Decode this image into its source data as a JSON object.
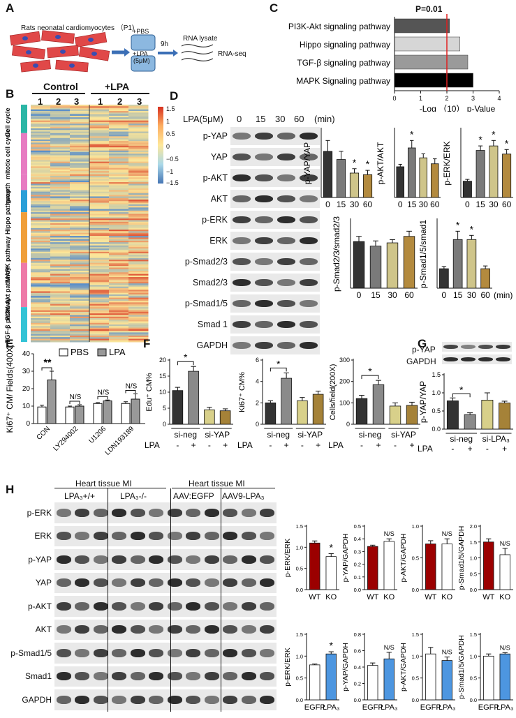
{
  "panels": {
    "A": "A",
    "B": "B",
    "C": "C",
    "D": "D",
    "E": "E",
    "F": "F",
    "G": "G",
    "H": "H"
  },
  "A": {
    "cells_label": "Rats neonatal cardiomyocytes （P1)",
    "pbs_label": "+PBS",
    "lpa_label": "+LPA",
    "lpa_conc": "(5μM)",
    "time": "9h",
    "lysate": "RNA lysate",
    "seq": "RNA-seq"
  },
  "B": {
    "control": "Control",
    "plus_lpa": "+LPA",
    "lanes": [
      "1",
      "2",
      "3",
      "1",
      "2",
      "3"
    ],
    "groups": [
      "Cell cycle",
      "mitotic cell cycle",
      "growth",
      "Hippo pathway",
      "MAPK pathway",
      "PI3K-Akt pathway",
      "TGF-β pathway"
    ],
    "colorbar": [
      "1.5",
      "1",
      "0.5",
      "0",
      "−0.5",
      "−1",
      "−1.5"
    ],
    "colors": {
      "high": "#e05a3a",
      "mid": "#fbe69a",
      "low": "#5b8fc9"
    }
  },
  "C": {
    "p_label": "P=0.01",
    "xlabel": "-Log （10） p-Value",
    "xticks": [
      "0",
      "1",
      "2",
      "3",
      "4"
    ],
    "chart_data": {
      "type": "bar",
      "orientation": "horizontal",
      "categories": [
        "PI3K-Akt signaling pathway",
        "Hippo signaling pathway",
        "TGF-β signaling pathway",
        "MAPK Signaling pathway"
      ],
      "values": [
        2.1,
        2.5,
        2.8,
        3.0
      ],
      "colors": [
        "#555555",
        "#d6d6d6",
        "#9a9a9a",
        "#000000"
      ],
      "threshold": 2.0,
      "xlim": [
        0,
        4
      ]
    }
  },
  "D": {
    "header": "LPA(5μM)",
    "times": [
      "0",
      "15",
      "30",
      "60"
    ],
    "unit": "(min)",
    "blot_labels": [
      "p-YAP",
      "YAP",
      "p-AKT",
      "AKT",
      "p-ERK",
      "ERK",
      "p-Smad2/3",
      "Smad2/3",
      "p-Smad1/5",
      "Smad 1",
      "GAPDH"
    ],
    "minlabel": "(min)",
    "charts": [
      {
        "ylabel": "p-YAP/YAP",
        "categories": [
          "0",
          "15",
          "30",
          "60"
        ],
        "values": [
          0.85,
          0.7,
          0.45,
          0.42
        ],
        "err": [
          0.2,
          0.15,
          0.08,
          0.08
        ],
        "sig": [
          "",
          "",
          "*",
          "*"
        ],
        "colors": [
          "#333333",
          "#7a7a7a",
          "#cfc58a",
          "#b38a3e"
        ]
      },
      {
        "ylabel": "p-AKT/AKT",
        "categories": [
          "0",
          "15",
          "30",
          "60"
        ],
        "values": [
          0.62,
          1.0,
          0.8,
          0.68
        ],
        "err": [
          0.05,
          0.15,
          0.08,
          0.1
        ],
        "sig": [
          "",
          "*",
          "",
          ""
        ],
        "colors": [
          "#333333",
          "#7a7a7a",
          "#cfc58a",
          "#b38a3e"
        ]
      },
      {
        "ylabel": "p-ERK/ERK",
        "categories": [
          "0",
          "15",
          "30",
          "60"
        ],
        "values": [
          0.18,
          0.52,
          0.57,
          0.48
        ],
        "err": [
          0.02,
          0.05,
          0.06,
          0.05
        ],
        "sig": [
          "",
          "*",
          "*",
          "*"
        ],
        "colors": [
          "#333333",
          "#7a7a7a",
          "#cfc58a",
          "#b38a3e"
        ]
      },
      {
        "ylabel": "p-Smad2/3/smad2/3",
        "categories": [
          "0",
          "15",
          "30",
          "60"
        ],
        "values": [
          0.72,
          0.65,
          0.7,
          0.8
        ],
        "err": [
          0.08,
          0.08,
          0.05,
          0.08
        ],
        "sig": [
          "",
          "",
          "",
          ""
        ],
        "colors": [
          "#333333",
          "#7a7a7a",
          "#cfc58a",
          "#b38a3e"
        ]
      },
      {
        "ylabel": "p-Smad1/5/smad1",
        "categories": [
          "0",
          "15",
          "30",
          "60"
        ],
        "values": [
          0.7,
          1.75,
          1.75,
          0.7
        ],
        "err": [
          0.08,
          0.3,
          0.15,
          0.1
        ],
        "sig": [
          "",
          "*",
          "*",
          ""
        ],
        "colors": [
          "#333333",
          "#7a7a7a",
          "#cfc58a",
          "#b38a3e"
        ]
      }
    ]
  },
  "E": {
    "legend": [
      "PBS",
      "LPA"
    ],
    "ylabel": "Ki67⁺ CM/ Fields(400X)",
    "yticks": [
      "0",
      "10",
      "20",
      "30",
      "40"
    ],
    "sig": [
      "**",
      "N/S",
      "N/S",
      "N/S"
    ],
    "chart_data": {
      "type": "bar",
      "categories": [
        "CON",
        "LY294002",
        "U1206",
        "LDN193189"
      ],
      "series": [
        {
          "name": "PBS",
          "values": [
            9.5,
            9.5,
            11.5,
            11.5
          ]
        },
        {
          "name": "LPA",
          "values": [
            25,
            10,
            13,
            14
          ]
        }
      ],
      "err": [
        [
          1,
          0.5,
          0.5,
          1
        ],
        [
          5,
          0.8,
          0.5,
          3
        ]
      ],
      "ylim": [
        0,
        40
      ]
    }
  },
  "F": {
    "lpa": "LPA",
    "groups": [
      "si-neg",
      "si-YAP"
    ],
    "signs": [
      "-",
      "+",
      "-",
      "+"
    ],
    "charts": [
      {
        "ylabel": "Edu⁺ CM%",
        "yticks": [
          "0",
          "5",
          "10",
          "15",
          "20"
        ],
        "ymax": 20,
        "values": [
          10.5,
          16.5,
          4.5,
          4.2
        ],
        "err": [
          1,
          1.5,
          0.8,
          0.6
        ],
        "sig": "*"
      },
      {
        "ylabel": "Ki67⁺ CM%",
        "yticks": [
          "0",
          "2",
          "4",
          "6"
        ],
        "ymax": 6,
        "values": [
          2.0,
          4.3,
          2.2,
          2.8
        ],
        "err": [
          0.2,
          0.5,
          0.3,
          0.3
        ],
        "sig": "*"
      },
      {
        "ylabel": "Cells/field(200X)",
        "yticks": [
          "0",
          "100",
          "200",
          "300"
        ],
        "ymax": 300,
        "values": [
          120,
          185,
          85,
          88
        ],
        "err": [
          15,
          20,
          15,
          15
        ],
        "sig": "*"
      }
    ]
  },
  "G": {
    "blot_labels": [
      "p-YAP",
      "GAPDH"
    ],
    "ylabel": "p-YAP/YAP",
    "yticks": [
      "0.0",
      "0.5",
      "1.0",
      "1.5"
    ],
    "groups": [
      "si-neg",
      "si-LPA₃"
    ],
    "lpa": "LPA",
    "signs": [
      "-",
      "+",
      "-",
      "+"
    ],
    "sig": "*",
    "chart_data": {
      "type": "bar",
      "categories": [
        "si-neg -",
        "si-neg +",
        "si-LPA3 -",
        "si-LPA3 +"
      ],
      "values": [
        0.78,
        0.4,
        0.8,
        0.72
      ],
      "err": [
        0.08,
        0.05,
        0.2,
        0.05
      ],
      "ylim": [
        0,
        1.5
      ]
    }
  },
  "H": {
    "header_left": "Heart tissue MI",
    "header_right": "Heart tissue MI",
    "groups": [
      "LPA₃+/+",
      "LPA₃-/-",
      "AAV:EGFP",
      "AAV9-LPA₃"
    ],
    "blot_labels": [
      "p-ERK",
      "ERK",
      "p-YAP",
      "YAP",
      "p-AKT",
      "AKT",
      "p-Smad1/5",
      "Smad1",
      "GAPDH"
    ],
    "top_charts": [
      {
        "ylabel": "p-ERK/ERK",
        "yticks": [
          "0.0",
          "0.5",
          "1.0",
          "1.5"
        ],
        "ymax": 1.5,
        "values": [
          1.1,
          0.78
        ],
        "err": [
          0.05,
          0.07
        ],
        "sig": "*",
        "labels": [
          "WT",
          "KO"
        ]
      },
      {
        "ylabel": "p-YAP/GAPDH",
        "yticks": [
          "0.0",
          "0.1",
          "0.2",
          "0.3",
          "0.4",
          "0.5"
        ],
        "ymax": 0.5,
        "values": [
          0.34,
          0.38
        ],
        "err": [
          0.01,
          0.02
        ],
        "sig": "N/S",
        "labels": [
          "WT",
          "KO"
        ]
      },
      {
        "ylabel": "p-AKT/GAPDH",
        "yticks": [
          "0.0",
          "0.5",
          "1.0"
        ],
        "ymax": 1.0,
        "values": [
          0.72,
          0.72
        ],
        "err": [
          0.05,
          0.08
        ],
        "sig": "N/S",
        "labels": [
          "WT",
          "KO"
        ]
      },
      {
        "ylabel": "p-Smad1/5/GAPDH",
        "yticks": [
          "0.0",
          "0.5",
          "1.0",
          "1.5",
          "2.0"
        ],
        "ymax": 2.0,
        "values": [
          1.5,
          1.1
        ],
        "err": [
          0.1,
          0.2
        ],
        "sig": "N/S",
        "labels": [
          "WT",
          "KO"
        ]
      }
    ],
    "bottom_charts": [
      {
        "ylabel": "p-ERK/ERK",
        "yticks": [
          "0.0",
          "0.5",
          "1.0",
          "1.5"
        ],
        "ymax": 1.5,
        "values": [
          0.8,
          1.05
        ],
        "err": [
          0.02,
          0.05
        ],
        "sig": "*",
        "labels": [
          "EGFP",
          "LPA₃"
        ]
      },
      {
        "ylabel": "p-YAP/GAPDH",
        "yticks": [
          "0.0",
          "0.2",
          "0.4",
          "0.6",
          "0.8"
        ],
        "ymax": 0.8,
        "values": [
          0.42,
          0.5
        ],
        "err": [
          0.03,
          0.08
        ],
        "sig": "N/S",
        "labels": [
          "EGFP",
          "LPA₃"
        ]
      },
      {
        "ylabel": "p-AKT/GAPDH",
        "yticks": [
          "0.0",
          "0.5",
          "1.0",
          "1.5"
        ],
        "ymax": 1.5,
        "values": [
          1.05,
          0.9
        ],
        "err": [
          0.15,
          0.08
        ],
        "sig": "N/S",
        "labels": [
          "EGFP",
          "LPA₃"
        ]
      },
      {
        "ylabel": "p-Smad1/5/GAPDH",
        "yticks": [
          "0.0",
          "0.5",
          "1.0",
          "1.5"
        ],
        "ymax": 1.5,
        "values": [
          1.0,
          1.05
        ],
        "err": [
          0.05,
          0.03
        ],
        "sig": "N/S",
        "labels": [
          "EGFP",
          "LPA₃"
        ]
      }
    ],
    "colors": {
      "ctrl_top": "#9b0000",
      "ctrl_bottom": "#ffffff",
      "treat_bottom": "#4d96e0"
    }
  }
}
